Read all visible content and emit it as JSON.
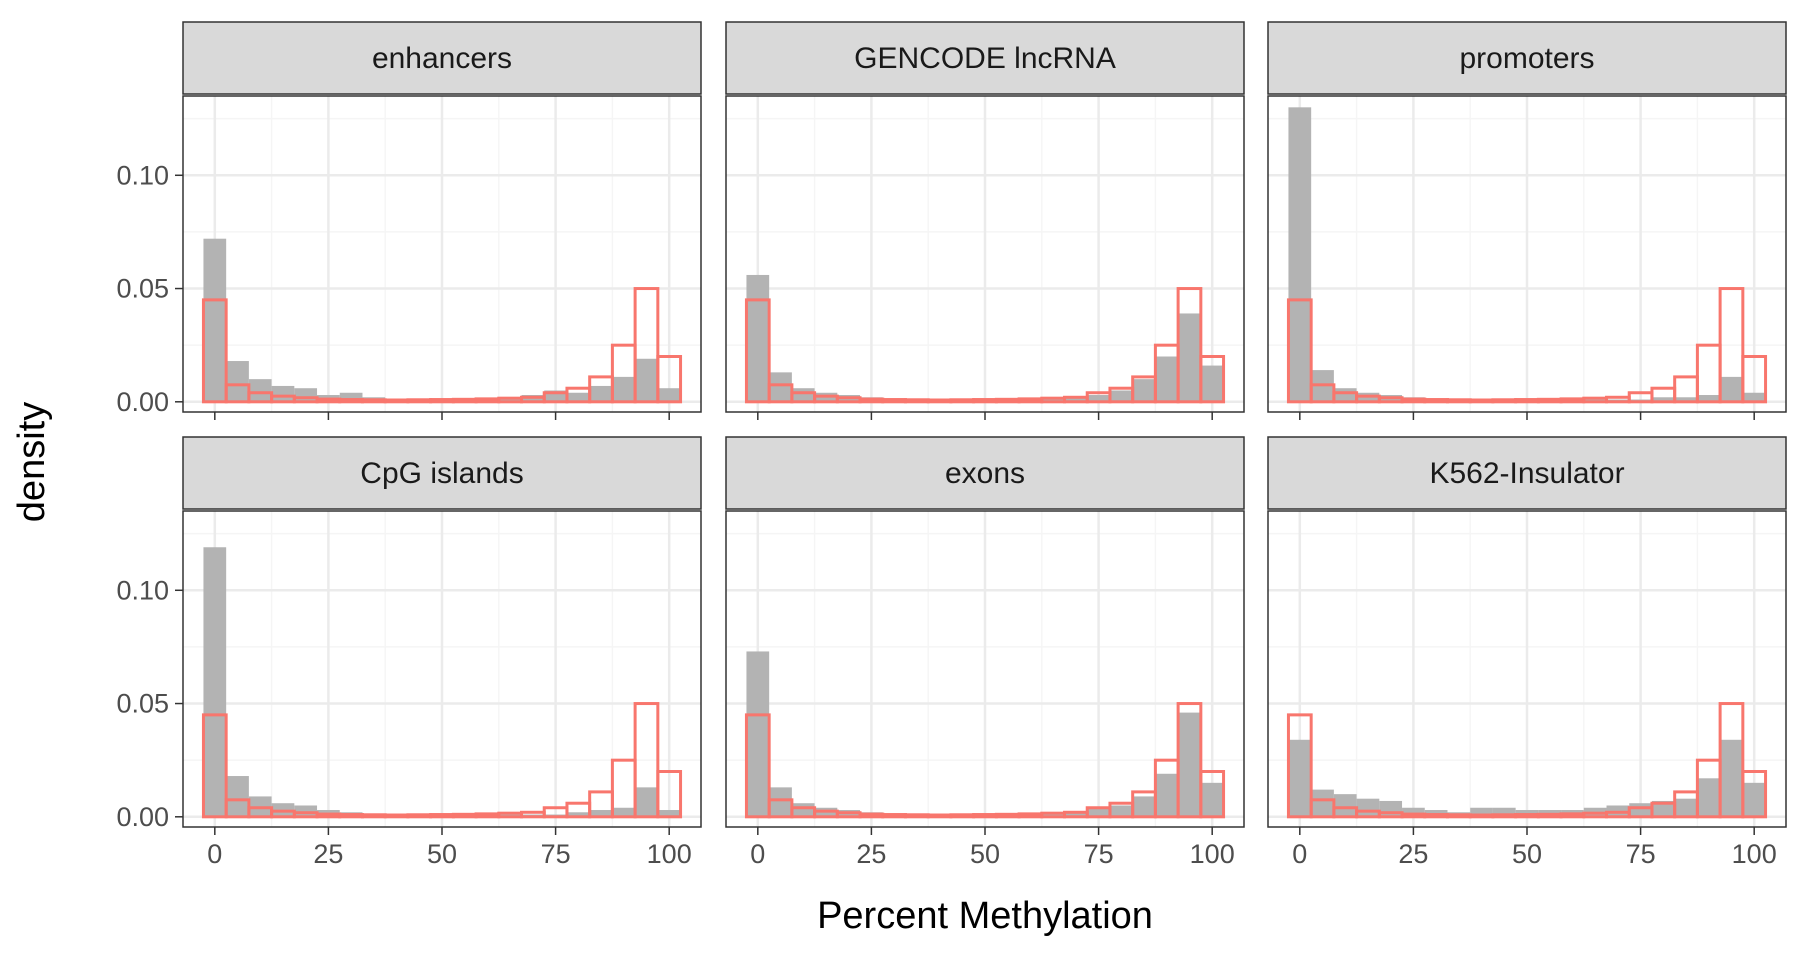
{
  "chart_data": {
    "type": "histogram-facets",
    "xlabel": "Percent Methylation",
    "ylabel": "density",
    "xlim": [
      -7,
      107
    ],
    "ylim": [
      -0.0045,
      0.135
    ],
    "x_ticks": [
      0,
      25,
      50,
      75,
      100
    ],
    "y_ticks": [
      0.0,
      0.05,
      0.1
    ],
    "y_tick_labels": [
      "0.00",
      "0.05",
      "0.10"
    ],
    "x_minor_gridlines": [
      12.5,
      37.5,
      62.5,
      87.5
    ],
    "y_minor_gridlines": [
      0.025,
      0.075,
      0.125
    ],
    "grid": true,
    "bin_centers": [
      0,
      5,
      10,
      15,
      20,
      25,
      30,
      35,
      40,
      45,
      50,
      55,
      60,
      65,
      70,
      75,
      80,
      85,
      90,
      95,
      100
    ],
    "bin_width": 5,
    "colors": {
      "region_fill": "#b3b3b3",
      "reference_outline": "#f8766d",
      "strip_fill": "#d9d9d9",
      "panel_border": "#333333",
      "grid_major": "#ebebeb",
      "grid_minor": "#f5f5f5"
    },
    "reference_series": [
      0.045,
      0.0075,
      0.004,
      0.0025,
      0.0018,
      0.0012,
      0.001,
      0.0009,
      0.0008,
      0.0009,
      0.001,
      0.0011,
      0.0013,
      0.0016,
      0.002,
      0.004,
      0.006,
      0.011,
      0.025,
      0.05,
      0.02
    ],
    "facets": [
      {
        "label": "enhancers",
        "values": [
          0.072,
          0.018,
          0.01,
          0.007,
          0.006,
          0.003,
          0.004,
          0.002,
          0.001,
          0.001,
          0.001,
          0.001,
          0.001,
          0.002,
          0.003,
          0.005,
          0.004,
          0.007,
          0.011,
          0.019,
          0.006
        ]
      },
      {
        "label": "GENCODE lncRNA",
        "values": [
          0.056,
          0.013,
          0.006,
          0.004,
          0.003,
          0.002,
          0.001,
          0.001,
          0.001,
          0.001,
          0.001,
          0.001,
          0.001,
          0.002,
          0.002,
          0.003,
          0.005,
          0.01,
          0.02,
          0.039,
          0.016
        ]
      },
      {
        "label": "promoters",
        "values": [
          0.13,
          0.014,
          0.006,
          0.004,
          0.003,
          0.002,
          0.001,
          0.001,
          0.001,
          0.001,
          0.001,
          0.001,
          0.001,
          0.001,
          0.001,
          0.001,
          0.002,
          0.002,
          0.003,
          0.011,
          0.004
        ]
      },
      {
        "label": "CpG islands",
        "values": [
          0.119,
          0.018,
          0.009,
          0.006,
          0.005,
          0.003,
          0.002,
          0.001,
          0.001,
          0.001,
          0.001,
          0.001,
          0.001,
          0.001,
          0.001,
          0.001,
          0.002,
          0.003,
          0.004,
          0.013,
          0.003
        ]
      },
      {
        "label": "exons",
        "values": [
          0.073,
          0.013,
          0.006,
          0.004,
          0.003,
          0.002,
          0.001,
          0.001,
          0.001,
          0.001,
          0.001,
          0.001,
          0.001,
          0.002,
          0.002,
          0.004,
          0.005,
          0.009,
          0.019,
          0.046,
          0.015
        ]
      },
      {
        "label": "K562-Insulator",
        "values": [
          0.034,
          0.012,
          0.01,
          0.008,
          0.007,
          0.004,
          0.003,
          0.002,
          0.004,
          0.004,
          0.003,
          0.003,
          0.003,
          0.004,
          0.005,
          0.006,
          0.007,
          0.008,
          0.017,
          0.034,
          0.015
        ]
      }
    ]
  }
}
